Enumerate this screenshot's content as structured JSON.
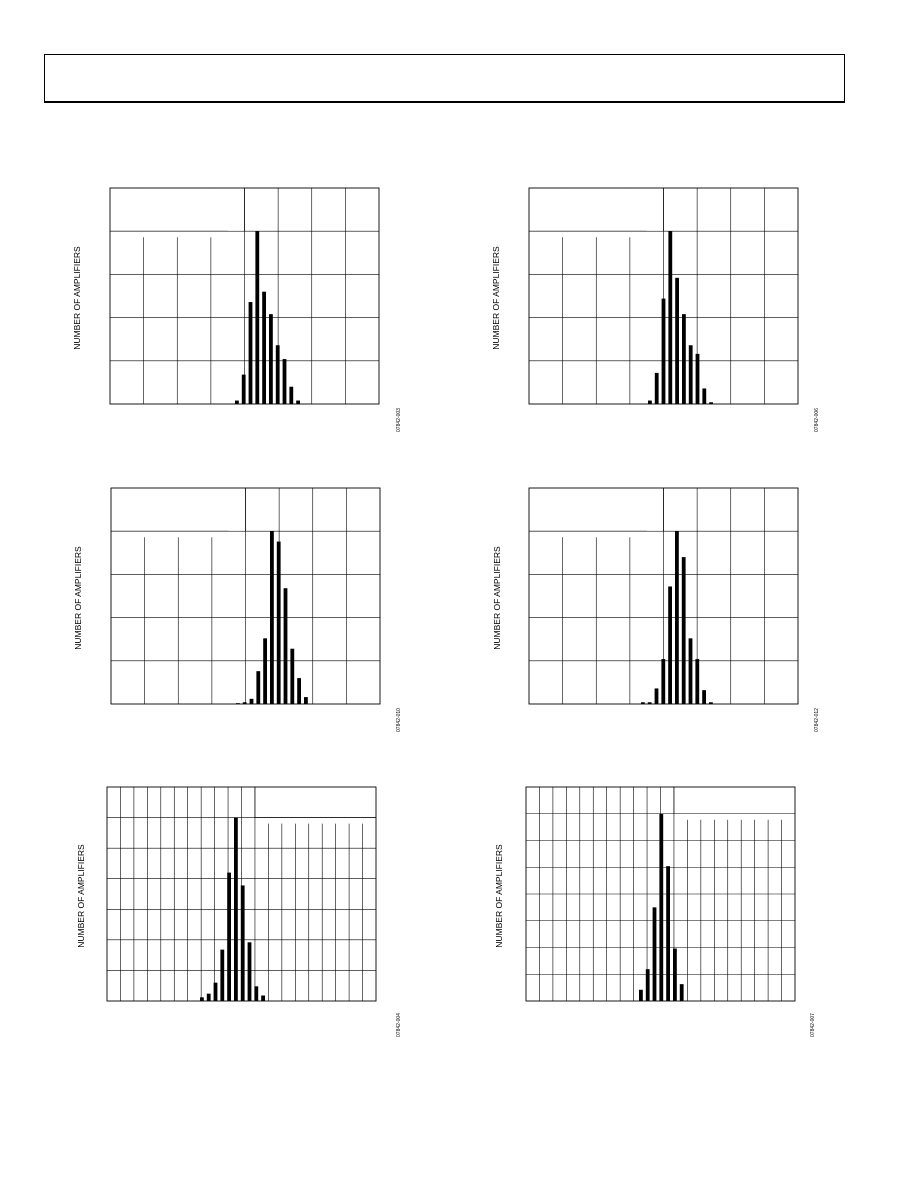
{
  "header": {
    "title": ""
  },
  "chart_data": [
    {
      "type": "bar",
      "ylabel": "NUMBER OF AMPLIFIERS",
      "figure_id": "07842-003",
      "grid": "8x5 with blank legend box top-left",
      "values": [
        0.02,
        0.17,
        0.59,
        1.0,
        0.65,
        0.52,
        0.34,
        0.26,
        0.1,
        0.02
      ]
    },
    {
      "type": "bar",
      "ylabel": "NUMBER OF AMPLIFIERS",
      "figure_id": "07842-006",
      "grid": "8x5 with blank legend box top-left",
      "values": [
        0.02,
        0.18,
        0.61,
        1.0,
        0.73,
        0.52,
        0.34,
        0.29,
        0.09,
        0.01
      ]
    },
    {
      "type": "bar",
      "ylabel": "NUMBER OF AMPLIFIERS",
      "figure_id": "07842-010",
      "grid": "8x5 with blank legend box top-left",
      "values": [
        0.005,
        0.01,
        0.03,
        0.19,
        0.38,
        1.0,
        0.94,
        0.67,
        0.32,
        0.15,
        0.04
      ]
    },
    {
      "type": "bar",
      "ylabel": "NUMBER OF AMPLIFIERS",
      "figure_id": "07842-012",
      "grid": "8x5 with blank legend box top-left",
      "values": [
        0.01,
        0.01,
        0.09,
        0.26,
        0.68,
        1.0,
        0.85,
        0.38,
        0.26,
        0.08,
        0.01
      ]
    },
    {
      "type": "bar",
      "ylabel": "NUMBER OF AMPLIFIERS",
      "figure_id": "07842-004",
      "grid": "20x6 with blank legend box top-right",
      "values": [
        0.02,
        0.04,
        0.1,
        0.28,
        0.7,
        1.0,
        0.63,
        0.32,
        0.08,
        0.03
      ]
    },
    {
      "type": "bar",
      "ylabel": "NUMBER OF AMPLIFIERS",
      "figure_id": "07842-007",
      "grid": "20x7 with blank legend box top-right",
      "values": [
        0.06,
        0.17,
        0.5,
        1.0,
        0.72,
        0.28,
        0.09
      ]
    }
  ]
}
